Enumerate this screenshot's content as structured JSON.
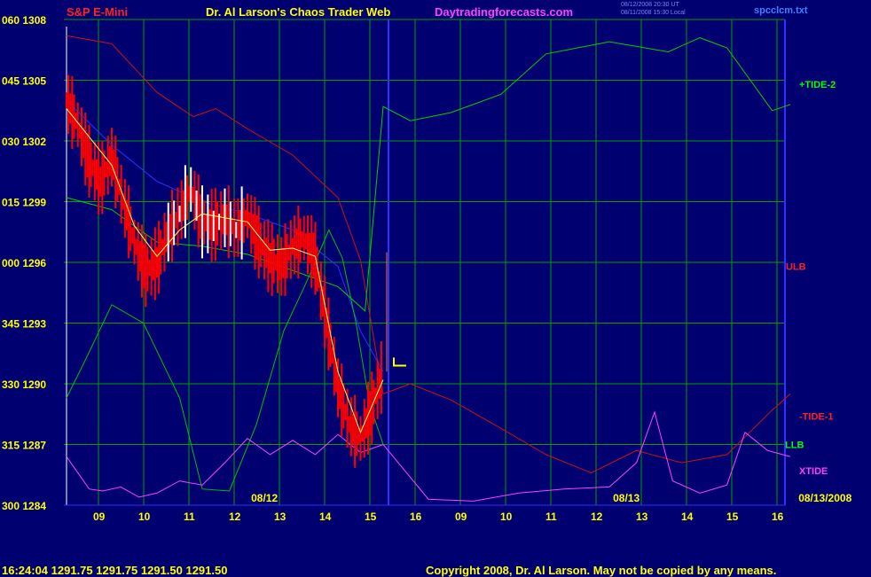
{
  "header": {
    "instrument": "S&P E-Mini",
    "site_title": "Dr. Al Larson's Chaos Trader Web",
    "site_url": "Daytradingforecasts.com",
    "date_line_1": "08/12/2008 20:30 UT",
    "date_line_2": "08/11/2008 15:30 Local",
    "filename": "spcclcm.txt"
  },
  "footer": {
    "quote": "16:24:04  1291.75  1291.75  1291.50  1291.50",
    "copyright": "Copyright 2008, Dr. Al Larson. May not be copied by any means."
  },
  "colors": {
    "background": "#000070",
    "grid": "#00a000",
    "price_bars": "#ff0000",
    "up_bars": "#ffffff",
    "tide2": "#00d000",
    "ulb": "#d01010",
    "llb": "#00c000",
    "xtide": "#ff40ff",
    "moving_avg": "#ffff60",
    "trend": "#3030ff"
  },
  "chart_data": {
    "type": "line",
    "title": "S&P E-Mini",
    "y_labels": [
      {
        "label": "060 1308",
        "value": 1308
      },
      {
        "label": "045 1305",
        "value": 1305
      },
      {
        "label": "030 1302",
        "value": 1302
      },
      {
        "label": "015 1299",
        "value": 1299
      },
      {
        "label": "000 1296",
        "value": 1296
      },
      {
        "label": "345 1293",
        "value": 1293
      },
      {
        "label": "330 1290",
        "value": 1290
      },
      {
        "label": "315 1287",
        "value": 1287
      },
      {
        "label": "300 1284",
        "value": 1284
      }
    ],
    "ylim": [
      1284,
      1308
    ],
    "x_ticks": [
      "09",
      "10",
      "11",
      "12",
      "13",
      "14",
      "15",
      "16",
      "09",
      "10",
      "11",
      "12",
      "13",
      "14",
      "15",
      "16"
    ],
    "date_markers": [
      {
        "label": "08/12",
        "hour_index": 3.1
      },
      {
        "label": "08/13",
        "hour_index": 11.1
      },
      {
        "label": "08/13/2008",
        "hour_index": 15.2
      }
    ],
    "now_hour_index": 7.0,
    "series_labels": [
      {
        "name": "+TIDE-2",
        "color": "#00ff00",
        "value": 1304.8
      },
      {
        "name": "ULB",
        "color": "#ff2020",
        "value": 1295.8
      },
      {
        "name": "-TIDE-1",
        "color": "#ff2020",
        "value": 1288.4
      },
      {
        "name": "LLB",
        "color": "#00ff00",
        "value": 1287.0
      },
      {
        "name": "XTIDE",
        "color": "#ff40ff",
        "value": 1285.7
      }
    ],
    "price": {
      "hours": [
        0,
        0.25,
        0.5,
        0.75,
        1.0,
        1.25,
        1.5,
        1.75,
        2.0,
        2.25,
        2.5,
        2.75,
        3.0,
        3.25,
        3.5,
        3.75,
        4.0,
        4.25,
        4.5,
        4.75,
        5.0,
        5.25,
        5.5,
        5.75,
        6.0,
        6.25,
        6.5,
        6.75,
        7.0
      ],
      "values": [
        1304.0,
        1302.8,
        1301.0,
        1300.0,
        1301.2,
        1299.0,
        1297.0,
        1295.6,
        1296.0,
        1297.5,
        1298.4,
        1299.6,
        1298.0,
        1297.8,
        1298.2,
        1297.6,
        1298.3,
        1297.0,
        1296.2,
        1295.8,
        1296.8,
        1297.2,
        1296.2,
        1293.0,
        1289.8,
        1288.0,
        1287.3,
        1288.8,
        1290.6
      ]
    },
    "moving_average": {
      "hours": [
        0,
        0.5,
        1.0,
        1.5,
        2.0,
        2.5,
        3.0,
        3.5,
        4.0,
        4.5,
        5.0,
        5.5,
        6.0,
        6.5,
        7.0
      ],
      "values": [
        1303.6,
        1302.2,
        1300.8,
        1297.8,
        1296.3,
        1297.6,
        1298.4,
        1298.2,
        1298.0,
        1296.6,
        1296.7,
        1296.3,
        1290.6,
        1287.6,
        1290.2
      ]
    },
    "trend_line": {
      "hours": [
        0,
        1.0,
        2.0,
        3.0,
        4.0,
        5.0,
        6.0,
        6.5,
        7.0
      ],
      "values": [
        1304.0,
        1301.8,
        1300.0,
        1299.0,
        1298.4,
        1297.6,
        1295.8,
        1292.6,
        1290.6
      ]
    },
    "tide2": {
      "hours": [
        0,
        1.0,
        2.0,
        3.0,
        4.0,
        5.0,
        6.0,
        6.6,
        7.0,
        7.6,
        8.5,
        9.6,
        10.6,
        12.0,
        13.3,
        14.0,
        14.6,
        15.6,
        16.0
      ],
      "values": [
        1299.2,
        1298.6,
        1297.0,
        1296.8,
        1296.4,
        1295.6,
        1294.8,
        1293.6,
        1303.7,
        1303.0,
        1303.4,
        1304.3,
        1306.3,
        1306.9,
        1306.4,
        1307.1,
        1306.6,
        1303.5,
        1303.8
      ]
    },
    "ulb": {
      "hours": [
        0,
        1.0,
        2.0,
        2.8,
        3.3,
        4.0,
        5.0,
        6.0,
        6.5,
        7.0,
        7.6,
        8.5,
        9.6,
        10.6,
        11.6,
        12.6,
        13.6,
        14.6,
        15.6,
        16.0
      ],
      "values": [
        1307.2,
        1306.8,
        1304.4,
        1303.2,
        1303.6,
        1302.6,
        1301.3,
        1299.2,
        1296.1,
        1289.5,
        1290.0,
        1289.2,
        1287.8,
        1286.5,
        1285.6,
        1286.7,
        1286.1,
        1286.5,
        1288.7,
        1289.5
      ]
    },
    "llb": {
      "hours": [
        0,
        0.4,
        1.0,
        1.7,
        2.5,
        3.0,
        3.6,
        4.2,
        4.8,
        5.3,
        5.8,
        6.1,
        6.4,
        6.7,
        7.0
      ],
      "values": [
        1289.3,
        1291.1,
        1293.9,
        1293.0,
        1289.3,
        1284.8,
        1284.7,
        1288.0,
        1292.6,
        1295.0,
        1297.6,
        1296.2,
        1293.0,
        1289.0,
        1287.0
      ]
    },
    "xtide": {
      "hours": [
        0,
        0.5,
        0.8,
        1.2,
        1.6,
        2.0,
        2.5,
        3.0,
        3.5,
        4.0,
        4.5,
        5.0,
        5.5,
        6.0,
        6.5,
        7.0,
        8.0,
        9.0,
        10.0,
        11.0,
        12.0,
        12.6,
        13.0,
        13.4,
        14.0,
        14.6,
        15.0,
        15.5,
        16.0
      ],
      "values": [
        1286.4,
        1284.8,
        1284.7,
        1284.9,
        1284.4,
        1284.6,
        1285.2,
        1285.0,
        1286.1,
        1287.3,
        1286.5,
        1287.2,
        1286.5,
        1287.5,
        1286.6,
        1287.0,
        1284.3,
        1284.2,
        1284.6,
        1284.8,
        1284.9,
        1286.1,
        1288.6,
        1285.2,
        1284.6,
        1285.0,
        1287.6,
        1286.7,
        1286.4
      ]
    }
  }
}
